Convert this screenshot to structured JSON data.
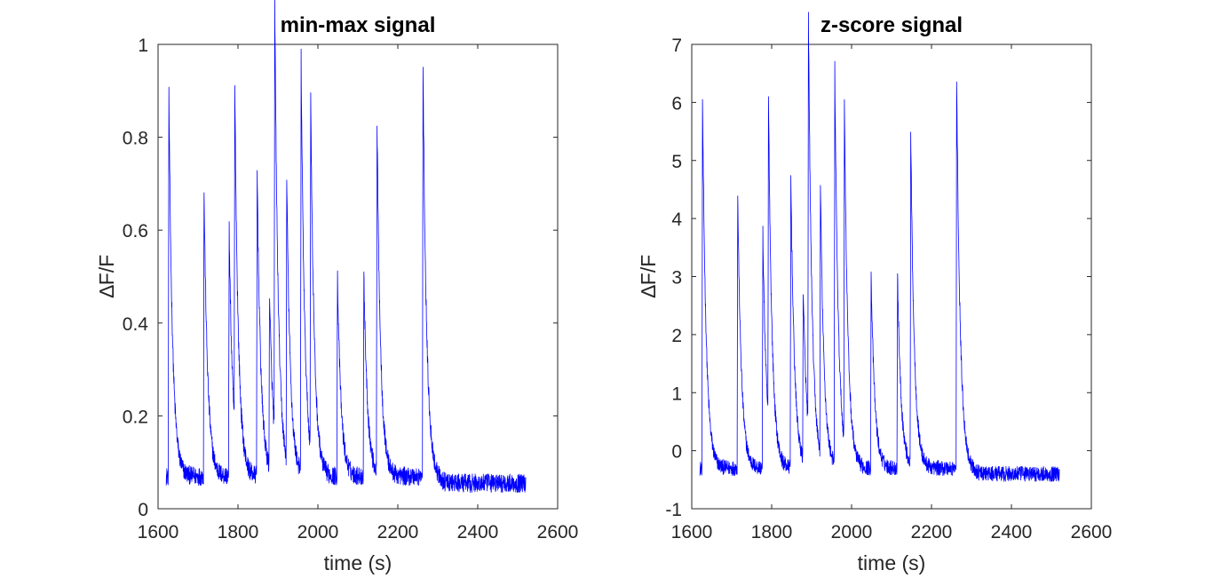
{
  "colors": {
    "trace": "#0000ff",
    "axes": "#262626",
    "background": "#ffffff"
  },
  "chart_data": [
    {
      "type": "line",
      "title": "min-max signal",
      "xlabel": "time (s)",
      "ylabel": "∆F/F",
      "xlim": [
        1600,
        2600
      ],
      "ylim": [
        0,
        1
      ],
      "xticks": [
        1600,
        1800,
        2000,
        2200,
        2400,
        2600
      ],
      "xtick_labels": [
        "1600",
        "1800",
        "2000",
        "2200",
        "2400",
        "2600"
      ],
      "yticks": [
        0,
        0.2,
        0.4,
        0.6,
        0.8,
        1
      ],
      "ytick_labels": [
        "0",
        "0.2",
        "0.4",
        "0.6",
        "0.8",
        "1"
      ],
      "grid": false,
      "series": [
        {
          "x_range": [
            1620,
            2520
          ],
          "baseline": 0.07,
          "baseline_late": 0.055,
          "noise": 0.02,
          "peaks": [
            {
              "x": 1627,
              "y": 0.9
            },
            {
              "x": 1715,
              "y": 0.69
            },
            {
              "x": 1778,
              "y": 0.6
            },
            {
              "x": 1792,
              "y": 0.8
            },
            {
              "x": 1848,
              "y": 0.73
            },
            {
              "x": 1879,
              "y": 0.45
            },
            {
              "x": 1892,
              "y": 1.0
            },
            {
              "x": 1922,
              "y": 0.68
            },
            {
              "x": 1958,
              "y": 0.96
            },
            {
              "x": 1982,
              "y": 0.83
            },
            {
              "x": 2049,
              "y": 0.5
            },
            {
              "x": 2115,
              "y": 0.51
            },
            {
              "x": 2148,
              "y": 0.82
            },
            {
              "x": 2263,
              "y": 0.95
            }
          ]
        }
      ]
    },
    {
      "type": "line",
      "title": "z-score signal",
      "xlabel": "time (s)",
      "ylabel": "∆F/F",
      "xlim": [
        1600,
        2600
      ],
      "ylim": [
        -1,
        7
      ],
      "xticks": [
        1600,
        1800,
        2000,
        2200,
        2400,
        2600
      ],
      "xtick_labels": [
        "1600",
        "1800",
        "2000",
        "2200",
        "2400",
        "2600"
      ],
      "yticks": [
        -1,
        0,
        1,
        2,
        3,
        4,
        5,
        6,
        7
      ],
      "ytick_labels": [
        "-1",
        "0",
        "1",
        "2",
        "3",
        "4",
        "5",
        "6",
        "7"
      ],
      "grid": false,
      "series": [
        {
          "x_range": [
            1620,
            2520
          ],
          "baseline": -0.3,
          "baseline_late": -0.4,
          "noise": 0.13,
          "peaks": [
            {
              "x": 1627,
              "y": 6.0
            },
            {
              "x": 1715,
              "y": 4.45
            },
            {
              "x": 1778,
              "y": 3.75
            },
            {
              "x": 1792,
              "y": 5.25
            },
            {
              "x": 1848,
              "y": 4.75
            },
            {
              "x": 1879,
              "y": 2.65
            },
            {
              "x": 1892,
              "y": 6.75
            },
            {
              "x": 1922,
              "y": 4.35
            },
            {
              "x": 1958,
              "y": 6.5
            },
            {
              "x": 1982,
              "y": 5.55
            },
            {
              "x": 2049,
              "y": 3.0
            },
            {
              "x": 2115,
              "y": 3.05
            },
            {
              "x": 2148,
              "y": 5.45
            },
            {
              "x": 2263,
              "y": 6.35
            }
          ]
        }
      ]
    }
  ]
}
